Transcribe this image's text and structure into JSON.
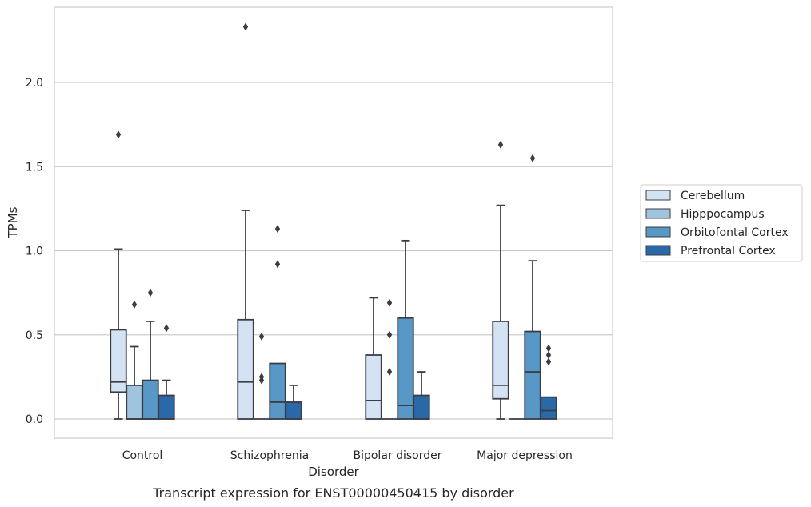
{
  "chart_data": {
    "type": "box",
    "title": "",
    "caption": "Transcript expression for ENST00000450415 by disorder",
    "xlabel": "Disorder",
    "ylabel": "TPMs",
    "ylim": [
      -0.11,
      2.45
    ],
    "yticks": [
      "0.0",
      "0.5",
      "1.0",
      "1.5",
      "2.0"
    ],
    "ytick_values": [
      0.0,
      0.5,
      1.0,
      1.5,
      2.0
    ],
    "grid": "horizontal",
    "legend_position": "right",
    "categories": [
      "Control",
      "Schizophrenia",
      "Bipolar disorder",
      "Major depression"
    ],
    "series": [
      {
        "name": "Cerebellum",
        "color": "#d4e3f3",
        "boxes": [
          {
            "whisker_low": 0.0,
            "q1": 0.16,
            "median": 0.22,
            "q3": 0.53,
            "whisker_high": 1.01,
            "outliers": [
              1.69
            ]
          },
          {
            "whisker_low": 0.0,
            "q1": 0.0,
            "median": 0.22,
            "q3": 0.59,
            "whisker_high": 1.24,
            "outliers": [
              2.33
            ]
          },
          {
            "whisker_low": 0.0,
            "q1": 0.0,
            "median": 0.11,
            "q3": 0.38,
            "whisker_high": 0.72,
            "outliers": []
          },
          {
            "whisker_low": 0.0,
            "q1": 0.12,
            "median": 0.2,
            "q3": 0.58,
            "whisker_high": 1.27,
            "outliers": [
              1.63
            ]
          }
        ]
      },
      {
        "name": "Hipppocampus",
        "color": "#9fc4de",
        "boxes": [
          {
            "whisker_low": 0.0,
            "q1": 0.0,
            "median": 0.0,
            "q3": 0.2,
            "whisker_high": 0.43,
            "outliers": [
              0.68
            ]
          },
          {
            "whisker_low": 0.0,
            "q1": 0.0,
            "median": 0.0,
            "q3": 0.0,
            "whisker_high": 0.0,
            "outliers": [
              0.23,
              0.25,
              0.49
            ]
          },
          {
            "whisker_low": 0.0,
            "q1": 0.0,
            "median": 0.0,
            "q3": 0.0,
            "whisker_high": 0.0,
            "outliers": [
              0.28,
              0.5,
              0.69
            ]
          },
          {
            "whisker_low": 0.0,
            "q1": 0.0,
            "median": 0.0,
            "q3": 0.0,
            "whisker_high": 0.0,
            "outliers": []
          }
        ]
      },
      {
        "name": "Orbitofontal Cortex",
        "color": "#5898c6",
        "boxes": [
          {
            "whisker_low": 0.0,
            "q1": 0.0,
            "median": 0.0,
            "q3": 0.23,
            "whisker_high": 0.58,
            "outliers": [
              0.75
            ]
          },
          {
            "whisker_low": 0.0,
            "q1": 0.0,
            "median": 0.1,
            "q3": 0.33,
            "whisker_high": 0.33,
            "outliers": [
              0.92,
              1.13
            ]
          },
          {
            "whisker_low": 0.0,
            "q1": 0.0,
            "median": 0.08,
            "q3": 0.6,
            "whisker_high": 1.06,
            "outliers": []
          },
          {
            "whisker_low": 0.0,
            "q1": 0.0,
            "median": 0.28,
            "q3": 0.52,
            "whisker_high": 0.94,
            "outliers": [
              1.55
            ]
          }
        ]
      },
      {
        "name": "Prefrontal Cortex",
        "color": "#2a69a8",
        "boxes": [
          {
            "whisker_low": 0.0,
            "q1": 0.0,
            "median": 0.0,
            "q3": 0.14,
            "whisker_high": 0.23,
            "outliers": [
              0.54
            ]
          },
          {
            "whisker_low": 0.0,
            "q1": 0.0,
            "median": 0.0,
            "q3": 0.1,
            "whisker_high": 0.2,
            "outliers": []
          },
          {
            "whisker_low": 0.0,
            "q1": 0.0,
            "median": 0.0,
            "q3": 0.14,
            "whisker_high": 0.28,
            "outliers": []
          },
          {
            "whisker_low": 0.0,
            "q1": 0.0,
            "median": 0.05,
            "q3": 0.13,
            "whisker_high": 0.13,
            "outliers": [
              0.34,
              0.38,
              0.42
            ]
          }
        ]
      }
    ]
  },
  "colors": {
    "frame": "#cccccc",
    "grid": "#cccccc",
    "box_edge": "#3c3c46",
    "text": "#262626"
  }
}
